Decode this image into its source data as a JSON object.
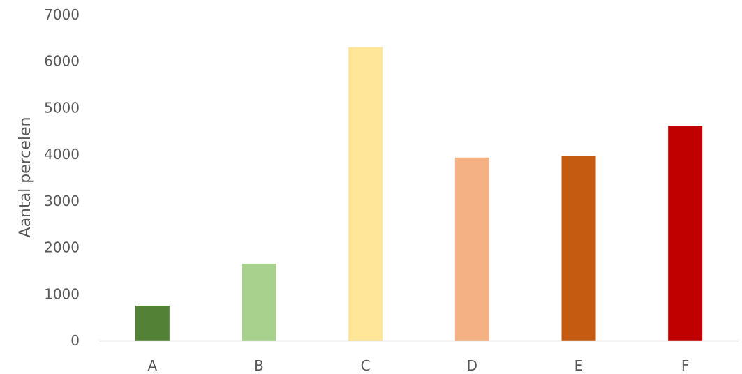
{
  "chart_data": {
    "type": "bar",
    "title": "",
    "xlabel": "",
    "ylabel": "Aantal percelen",
    "categories": [
      "A",
      "B",
      "C",
      "D",
      "E",
      "F"
    ],
    "values": [
      750,
      1650,
      6300,
      3930,
      3960,
      4610
    ],
    "colors": [
      "#538135",
      "#A9D18E",
      "#FFE699",
      "#F4B183",
      "#C55A11",
      "#C00000"
    ],
    "ylim": [
      0,
      7000
    ],
    "yticks": [
      0,
      1000,
      2000,
      3000,
      4000,
      5000,
      6000,
      7000
    ],
    "grid": false,
    "legend": "none"
  }
}
